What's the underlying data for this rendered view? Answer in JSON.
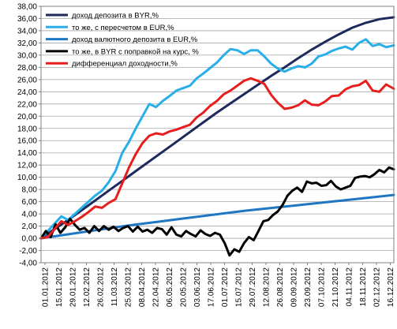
{
  "chart_data": {
    "type": "line",
    "title": "",
    "xlabel": "",
    "ylabel": "",
    "ylim": [
      -4,
      38
    ],
    "ystep": 2,
    "grid": true,
    "legend_position": "top-left",
    "y_ticks": [
      "-4,00",
      "-2,00",
      "0,00",
      "2,00",
      "4,00",
      "6,00",
      "8,00",
      "10,00",
      "12,00",
      "14,00",
      "16,00",
      "18,00",
      "20,00",
      "22,00",
      "24,00",
      "26,00",
      "28,00",
      "30,00",
      "32,00",
      "34,00",
      "36,00",
      "38,00"
    ],
    "x_ticks": [
      "01.01.2012",
      "15.01.2012",
      "29.01.2012",
      "12.02.2012",
      "26.02.2012",
      "11.03.2012",
      "25.03.2012",
      "08.04.2012",
      "22.04.2012",
      "06.05.2012",
      "20.05.2012",
      "03.06.2012",
      "17.06.2012",
      "01.07.2012",
      "15.07.2012",
      "29.07.2012",
      "12.08.2012",
      "26.08.2012",
      "09.09.2012",
      "23.09.2012",
      "07.10.2012",
      "21.10.2012",
      "04.11.2012",
      "18.11.2012",
      "02.12.2012",
      "16.12.2012"
    ],
    "x_range": [
      0,
      365
    ],
    "series": [
      {
        "name": "доход депозита в BYR,%",
        "color": "#1f2a5c",
        "points": [
          [
            0,
            0
          ],
          [
            14,
            1.5
          ],
          [
            28,
            3
          ],
          [
            42,
            4.6
          ],
          [
            56,
            6.2
          ],
          [
            70,
            7.8
          ],
          [
            84,
            9.4
          ],
          [
            98,
            11.0
          ],
          [
            112,
            12.6
          ],
          [
            126,
            14.2
          ],
          [
            140,
            15.8
          ],
          [
            154,
            17.4
          ],
          [
            168,
            19.0
          ],
          [
            182,
            20.6
          ],
          [
            196,
            22.1
          ],
          [
            210,
            23.6
          ],
          [
            224,
            25.1
          ],
          [
            238,
            26.6
          ],
          [
            252,
            28.0
          ],
          [
            266,
            29.5
          ],
          [
            280,
            30.9
          ],
          [
            294,
            32.2
          ],
          [
            308,
            33.4
          ],
          [
            322,
            34.5
          ],
          [
            336,
            35.3
          ],
          [
            350,
            35.9
          ],
          [
            365,
            36.2
          ]
        ]
      },
      {
        "name": "то же, с пересчетом в EUR,%",
        "color": "#29aee8",
        "points": [
          [
            0,
            0
          ],
          [
            7,
            1.2
          ],
          [
            14,
            2.4
          ],
          [
            21,
            3.6
          ],
          [
            28,
            3.0
          ],
          [
            35,
            4.0
          ],
          [
            42,
            5.0
          ],
          [
            49,
            6.0
          ],
          [
            56,
            7.0
          ],
          [
            63,
            7.8
          ],
          [
            70,
            9.2
          ],
          [
            77,
            11.0
          ],
          [
            84,
            14.0
          ],
          [
            91,
            15.8
          ],
          [
            98,
            18.0
          ],
          [
            105,
            20.0
          ],
          [
            112,
            22.0
          ],
          [
            119,
            21.5
          ],
          [
            126,
            22.5
          ],
          [
            133,
            23.3
          ],
          [
            140,
            24.2
          ],
          [
            147,
            24.6
          ],
          [
            154,
            25.0
          ],
          [
            161,
            26.2
          ],
          [
            168,
            27.0
          ],
          [
            175,
            27.9
          ],
          [
            182,
            28.8
          ],
          [
            189,
            30.0
          ],
          [
            196,
            31.0
          ],
          [
            203,
            30.8
          ],
          [
            210,
            30.2
          ],
          [
            217,
            30.8
          ],
          [
            224,
            30.8
          ],
          [
            231,
            29.8
          ],
          [
            238,
            28.6
          ],
          [
            245,
            27.8
          ],
          [
            252,
            27.3
          ],
          [
            259,
            27.8
          ],
          [
            266,
            28.2
          ],
          [
            273,
            28.0
          ],
          [
            280,
            28.6
          ],
          [
            287,
            29.8
          ],
          [
            294,
            30.1
          ],
          [
            301,
            30.7
          ],
          [
            308,
            31.1
          ],
          [
            315,
            31.4
          ],
          [
            322,
            30.9
          ],
          [
            329,
            32.0
          ],
          [
            336,
            32.6
          ],
          [
            343,
            31.5
          ],
          [
            350,
            31.8
          ],
          [
            357,
            31.3
          ],
          [
            365,
            31.6
          ]
        ]
      },
      {
        "name": "доход валютного депозита в EUR,%",
        "color": "#1f77c4",
        "points": [
          [
            0,
            0
          ],
          [
            30,
            0.7
          ],
          [
            60,
            1.4
          ],
          [
            90,
            2.1
          ],
          [
            120,
            2.7
          ],
          [
            150,
            3.3
          ],
          [
            180,
            3.9
          ],
          [
            210,
            4.5
          ],
          [
            240,
            5.0
          ],
          [
            270,
            5.5
          ],
          [
            300,
            6.0
          ],
          [
            330,
            6.5
          ],
          [
            365,
            7.1
          ]
        ]
      },
      {
        "name": "то же, в BYR с поправкой на курс, %",
        "color": "#000000",
        "points": [
          [
            0,
            0
          ],
          [
            5,
            1.2
          ],
          [
            10,
            0.2
          ],
          [
            15,
            2.3
          ],
          [
            20,
            0.9
          ],
          [
            25,
            1.8
          ],
          [
            30,
            3.2
          ],
          [
            35,
            2.2
          ],
          [
            40,
            1.4
          ],
          [
            45,
            1.7
          ],
          [
            50,
            0.9
          ],
          [
            55,
            2.0
          ],
          [
            60,
            1.2
          ],
          [
            65,
            2.0
          ],
          [
            70,
            1.4
          ],
          [
            75,
            1.9
          ],
          [
            80,
            1.2
          ],
          [
            85,
            1.7
          ],
          [
            90,
            2.0
          ],
          [
            95,
            1.1
          ],
          [
            100,
            1.9
          ],
          [
            105,
            1.1
          ],
          [
            110,
            1.4
          ],
          [
            115,
            0.9
          ],
          [
            120,
            1.7
          ],
          [
            125,
            1.5
          ],
          [
            130,
            0.6
          ],
          [
            135,
            1.8
          ],
          [
            140,
            0.6
          ],
          [
            145,
            0.3
          ],
          [
            150,
            1.2
          ],
          [
            155,
            0.7
          ],
          [
            160,
            0.3
          ],
          [
            165,
            1.3
          ],
          [
            170,
            0.7
          ],
          [
            175,
            0.4
          ],
          [
            180,
            0.9
          ],
          [
            185,
            0.6
          ],
          [
            190,
            -0.8
          ],
          [
            195,
            -2.8
          ],
          [
            200,
            -1.8
          ],
          [
            205,
            -2.2
          ],
          [
            210,
            -0.8
          ],
          [
            215,
            0.2
          ],
          [
            220,
            -0.3
          ],
          [
            225,
            1.2
          ],
          [
            230,
            2.8
          ],
          [
            235,
            3.0
          ],
          [
            240,
            3.8
          ],
          [
            245,
            4.4
          ],
          [
            250,
            5.5
          ],
          [
            255,
            7.0
          ],
          [
            260,
            7.8
          ],
          [
            265,
            8.3
          ],
          [
            270,
            7.6
          ],
          [
            275,
            9.3
          ],
          [
            280,
            9.0
          ],
          [
            285,
            9.1
          ],
          [
            290,
            8.6
          ],
          [
            295,
            8.7
          ],
          [
            300,
            9.4
          ],
          [
            305,
            8.5
          ],
          [
            310,
            8.0
          ],
          [
            315,
            8.3
          ],
          [
            320,
            8.6
          ],
          [
            325,
            9.9
          ],
          [
            330,
            10.1
          ],
          [
            335,
            10.2
          ],
          [
            340,
            10.0
          ],
          [
            345,
            10.5
          ],
          [
            350,
            11.2
          ],
          [
            355,
            10.8
          ],
          [
            360,
            11.6
          ],
          [
            365,
            11.3
          ]
        ]
      },
      {
        "name": "дифференциал доходности,%",
        "color": "#e81e1e",
        "points": [
          [
            0,
            0
          ],
          [
            7,
            0.2
          ],
          [
            14,
            1.5
          ],
          [
            21,
            2.8
          ],
          [
            28,
            2.2
          ],
          [
            35,
            2.8
          ],
          [
            42,
            3.5
          ],
          [
            49,
            4.3
          ],
          [
            56,
            5.2
          ],
          [
            63,
            5.0
          ],
          [
            70,
            5.8
          ],
          [
            77,
            6.4
          ],
          [
            84,
            9.0
          ],
          [
            91,
            11.6
          ],
          [
            98,
            13.8
          ],
          [
            105,
            15.6
          ],
          [
            112,
            16.8
          ],
          [
            119,
            17.2
          ],
          [
            126,
            17.0
          ],
          [
            133,
            17.5
          ],
          [
            140,
            17.8
          ],
          [
            147,
            18.2
          ],
          [
            154,
            18.6
          ],
          [
            161,
            19.8
          ],
          [
            168,
            20.6
          ],
          [
            175,
            21.7
          ],
          [
            182,
            22.5
          ],
          [
            189,
            23.6
          ],
          [
            196,
            24.2
          ],
          [
            203,
            25.0
          ],
          [
            210,
            25.8
          ],
          [
            217,
            26.2
          ],
          [
            224,
            25.8
          ],
          [
            231,
            25.3
          ],
          [
            238,
            23.5
          ],
          [
            245,
            22.2
          ],
          [
            252,
            21.2
          ],
          [
            259,
            21.4
          ],
          [
            266,
            21.8
          ],
          [
            273,
            22.6
          ],
          [
            280,
            21.9
          ],
          [
            287,
            21.8
          ],
          [
            294,
            22.4
          ],
          [
            301,
            23.3
          ],
          [
            308,
            23.4
          ],
          [
            315,
            24.4
          ],
          [
            322,
            24.9
          ],
          [
            329,
            25.1
          ],
          [
            336,
            25.8
          ],
          [
            343,
            24.2
          ],
          [
            350,
            24.0
          ],
          [
            357,
            25.2
          ],
          [
            365,
            24.5
          ]
        ]
      }
    ]
  }
}
